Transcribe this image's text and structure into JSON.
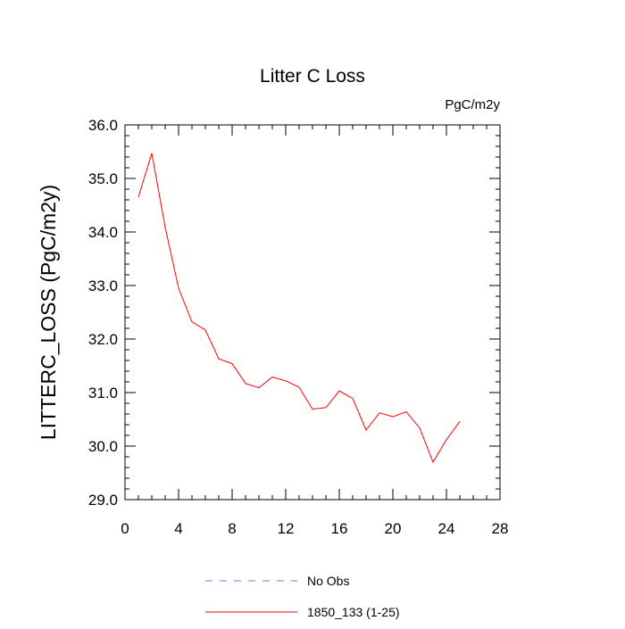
{
  "chart_data": {
    "type": "line",
    "title": "Litter C Loss",
    "units_label": "PgC/m2y",
    "xlabel": "",
    "ylabel": "LITTERC_LOSS  (PgC/m2y)",
    "xlim": [
      0,
      28
    ],
    "ylim": [
      29.0,
      36.0
    ],
    "x_ticks": [
      0,
      4,
      8,
      12,
      16,
      20,
      24,
      28
    ],
    "x_tick_labels": [
      "0",
      "4",
      "8",
      "12",
      "16",
      "20",
      "24",
      "28"
    ],
    "y_ticks": [
      29.0,
      30.0,
      31.0,
      32.0,
      33.0,
      34.0,
      35.0,
      36.0
    ],
    "y_tick_labels": [
      "29.0",
      "30.0",
      "31.0",
      "32.0",
      "33.0",
      "34.0",
      "35.0",
      "36.0"
    ],
    "grid": false,
    "legend_position": "bottom",
    "series": [
      {
        "name": "No Obs",
        "color": "#7777ff",
        "dash": "dashed",
        "x": [],
        "values": []
      },
      {
        "name": "1850_133 (1-25)",
        "color": "#ff0000",
        "dash": "solid",
        "x": [
          1,
          2,
          3,
          4,
          5,
          6,
          7,
          8,
          9,
          10,
          11,
          12,
          13,
          14,
          15,
          16,
          17,
          18,
          19,
          20,
          21,
          22,
          23,
          24,
          25
        ],
        "values": [
          34.65,
          35.47,
          34.09,
          32.95,
          32.32,
          32.17,
          31.63,
          31.54,
          31.17,
          31.09,
          31.29,
          31.22,
          31.1,
          30.69,
          30.72,
          31.03,
          30.89,
          30.3,
          30.62,
          30.55,
          30.64,
          30.34,
          29.7,
          30.12,
          30.46
        ]
      }
    ]
  }
}
